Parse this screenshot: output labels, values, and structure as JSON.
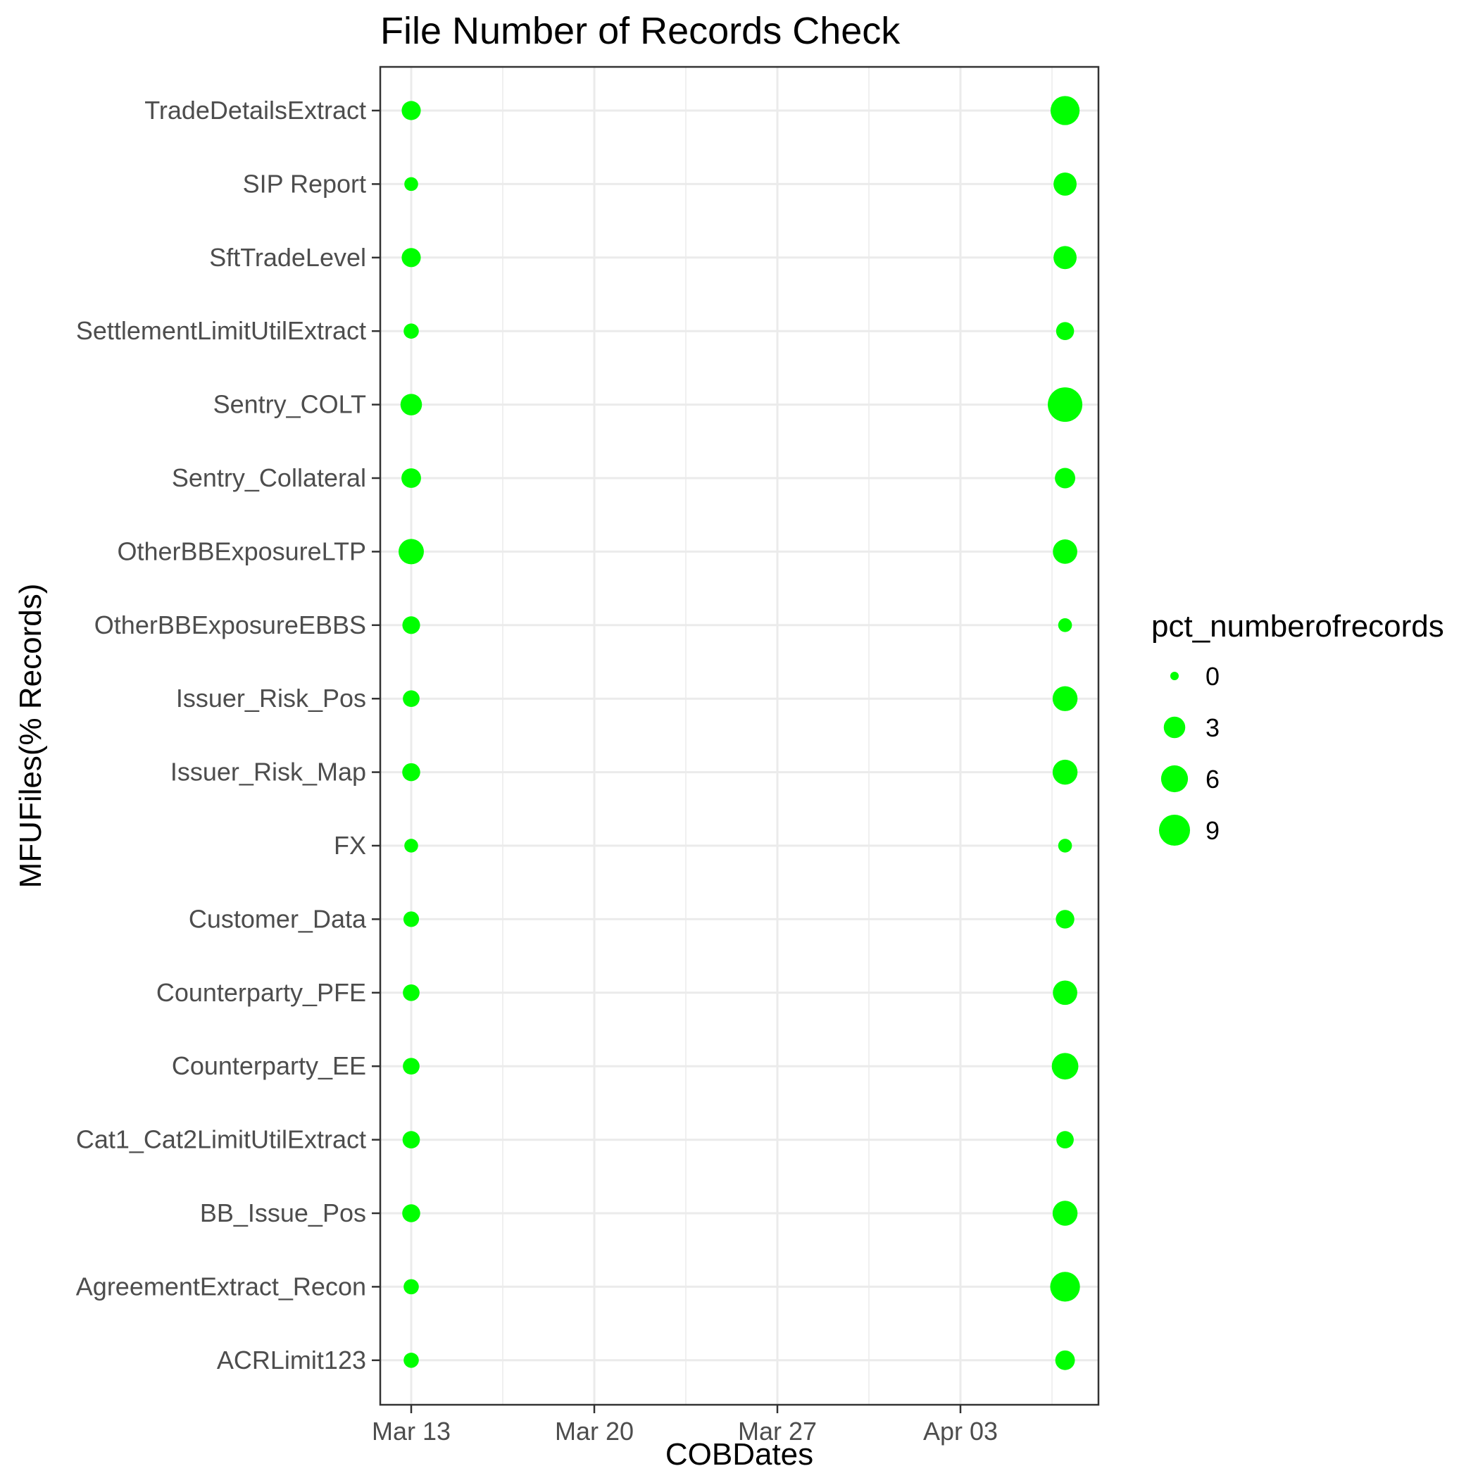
{
  "chart_data": {
    "type": "scatter",
    "title": "File Number of Records Check",
    "xlabel": "COBDates",
    "ylabel": "MFUFiles(% Records)",
    "x_ticks": [
      "Mar 13",
      "Mar 20",
      "Mar 27",
      "Apr 03"
    ],
    "x_dates": [
      "Mar 13",
      "Apr 07"
    ],
    "categories": [
      "TradeDetailsExtract",
      "SIP Report",
      "SftTradeLevel",
      "SettlementLimitUtilExtract",
      "Sentry_COLT",
      "Sentry_Collateral",
      "OtherBBExposureLTP",
      "OtherBBExposureEBBS",
      "Issuer_Risk_Pos",
      "Issuer_Risk_Map",
      "FX",
      "Customer_Data",
      "Counterparty_PFE",
      "Counterparty_EE",
      "Cat1_Cat2LimitUtilExtract",
      "BB_Issue_Pos",
      "AgreementExtract_Recon",
      "ACRLimit123"
    ],
    "series": [
      {
        "x": "Mar 13",
        "values": [
          2.0,
          0.5,
          2.0,
          0.8,
          3.0,
          2.2,
          5.0,
          1.5,
          1.2,
          1.6,
          0.5,
          0.9,
          1.2,
          1.2,
          1.4,
          1.6,
          0.8,
          0.8
        ]
      },
      {
        "x": "Apr 07",
        "values": [
          7.5,
          3.8,
          3.8,
          1.6,
          12.0,
          2.5,
          4.5,
          0.5,
          4.8,
          4.8,
          0.5,
          1.8,
          4.5,
          5.8,
          1.4,
          4.8,
          8.0,
          2.2
        ]
      }
    ],
    "legend": {
      "title": "pct_numberofrecords",
      "entries": [
        0,
        3,
        6,
        9
      ],
      "position": "right"
    },
    "colors": {
      "point": "#00ff00",
      "grid": "#ebebeb",
      "panel_border": "#333333"
    },
    "grid": true
  }
}
